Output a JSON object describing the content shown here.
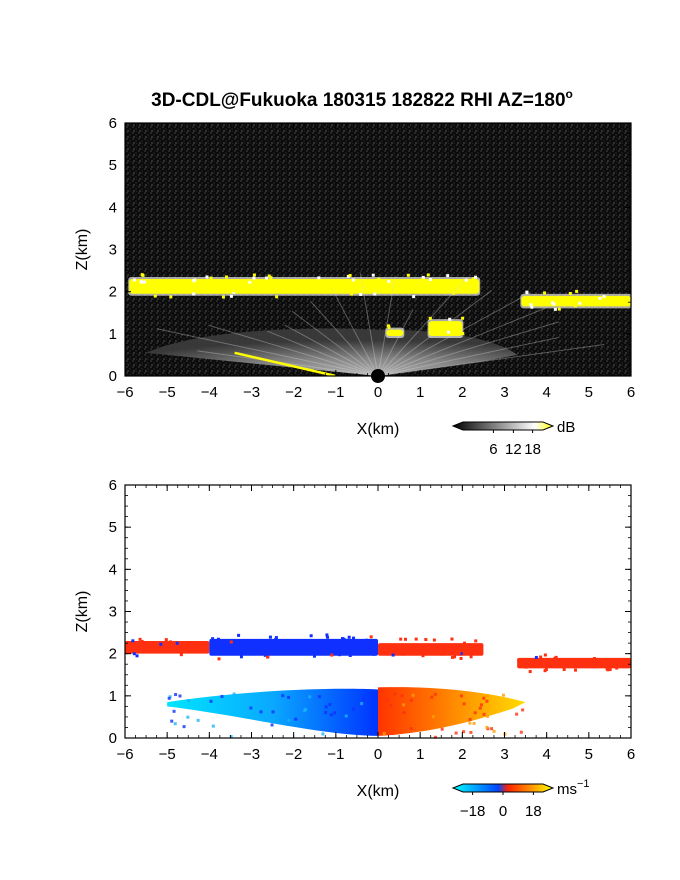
{
  "title": "3D-CDL@Fukuoka 180315 182822 RHI AZ=180",
  "title_superscript": "o",
  "chart_data": [
    {
      "type": "heatmap",
      "quantity": "reflectivity",
      "xlabel": "X(km)",
      "ylabel": "Z(km)",
      "xlim": [
        -6,
        6
      ],
      "ylim": [
        0,
        6
      ],
      "xticks": [
        "-6",
        "-5",
        "-4",
        "-3",
        "-2",
        "-1",
        "0",
        "1",
        "2",
        "3",
        "4",
        "5",
        "6"
      ],
      "yticks": [
        "0",
        "1",
        "2",
        "3",
        "4",
        "5",
        "6"
      ],
      "colorbar": {
        "unit": "dB",
        "ticks": [
          "6",
          "12",
          "18"
        ],
        "colors": [
          "#000000",
          "#ffffff",
          "#ffff00"
        ]
      },
      "features": [
        {
          "kind": "layer",
          "x": [
            -5.9,
            2.4
          ],
          "z": [
            1.95,
            2.3
          ],
          "level_db": 19
        },
        {
          "kind": "layer",
          "x": [
            3.4,
            6.0
          ],
          "z": [
            1.65,
            1.9
          ],
          "level_db": 19
        },
        {
          "kind": "fan",
          "x": [
            -5.5,
            3.3
          ],
          "z": [
            0.0,
            1.15
          ],
          "level_db": 12
        },
        {
          "kind": "patch",
          "x": [
            1.2,
            2.0
          ],
          "z": [
            0.95,
            1.3
          ],
          "level_db": 19
        },
        {
          "kind": "patch",
          "x": [
            0.2,
            0.6
          ],
          "z": [
            0.95,
            1.1
          ],
          "level_db": 19
        }
      ]
    },
    {
      "type": "heatmap",
      "quantity": "radial velocity",
      "xlabel": "X(km)",
      "ylabel": "Z(km)",
      "xlim": [
        -6,
        6
      ],
      "ylim": [
        0,
        6
      ],
      "xticks": [
        "-6",
        "-5",
        "-4",
        "-3",
        "-2",
        "-1",
        "0",
        "1",
        "2",
        "3",
        "4",
        "5",
        "6"
      ],
      "yticks": [
        "0",
        "1",
        "2",
        "3",
        "4",
        "5",
        "6"
      ],
      "colorbar": {
        "unit": "ms",
        "unit_superscript": "−1",
        "ticks": [
          "−18",
          "0",
          "18"
        ],
        "colors": [
          "#00ffff",
          "#0044ff",
          "#ff2200",
          "#ffff00"
        ]
      },
      "features": [
        {
          "kind": "layer",
          "x": [
            -6.0,
            -4.0
          ],
          "z": [
            2.0,
            2.3
          ],
          "velocity": 12
        },
        {
          "kind": "layer",
          "x": [
            -4.0,
            0.0
          ],
          "z": [
            1.95,
            2.35
          ],
          "velocity": -12
        },
        {
          "kind": "layer",
          "x": [
            0.0,
            2.5
          ],
          "z": [
            1.95,
            2.25
          ],
          "velocity": 10
        },
        {
          "kind": "layer",
          "x": [
            3.3,
            6.0
          ],
          "z": [
            1.65,
            1.9
          ],
          "velocity": 10
        },
        {
          "kind": "cone",
          "x": [
            -5.0,
            0.0
          ],
          "z": [
            0.05,
            1.2
          ],
          "velocity": -15
        },
        {
          "kind": "cone",
          "x": [
            0.0,
            3.5
          ],
          "z": [
            0.05,
            1.25
          ],
          "velocity": 15
        }
      ]
    }
  ]
}
